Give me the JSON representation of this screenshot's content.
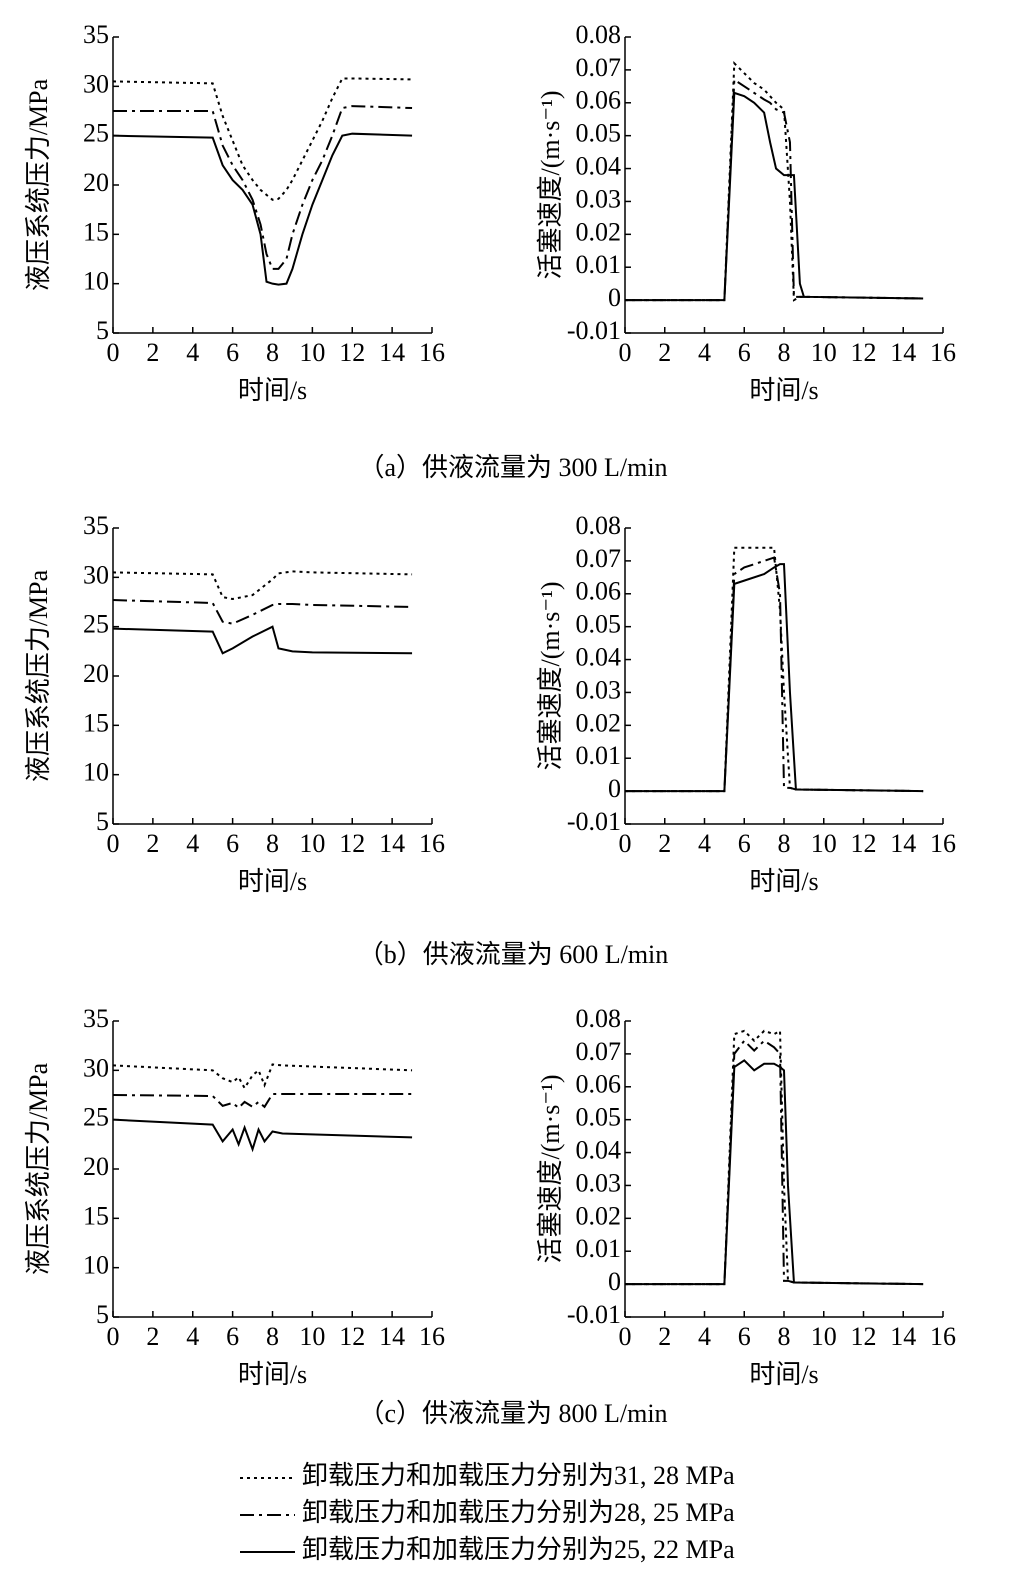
{
  "chart_data": [
    {
      "type": "line",
      "ylabel": "液压系统压力/MPa",
      "xlabel": "时间/s",
      "xlim": [
        0,
        16
      ],
      "xticks": [
        0,
        2,
        4,
        6,
        8,
        10,
        12,
        14,
        16
      ],
      "ylim": [
        5,
        35
      ],
      "yticks": [
        5,
        10,
        15,
        20,
        25,
        30,
        35
      ],
      "x": [
        0,
        5,
        5.5,
        6,
        6.5,
        7,
        7.4,
        7.7,
        8,
        8.3,
        8.7,
        9,
        9.5,
        10,
        10.5,
        11,
        11.5,
        12,
        15
      ],
      "series": [
        {
          "dash": "dotted",
          "color": "#000000",
          "values": [
            30.5,
            30.3,
            27,
            24.5,
            22,
            20.5,
            19.5,
            19,
            18.5,
            18.6,
            19.5,
            20.5,
            22.5,
            24.5,
            26.5,
            28.8,
            30.8,
            30.8,
            30.7
          ]
        },
        {
          "dash": "dashdot",
          "color": "#000000",
          "values": [
            27.5,
            27.5,
            24,
            22,
            20.5,
            18.5,
            16,
            13,
            11.5,
            11.5,
            12.5,
            15,
            18,
            20.5,
            22.5,
            25,
            27.8,
            28,
            27.8
          ]
        },
        {
          "dash": "solid",
          "color": "#000000",
          "values": [
            25,
            24.8,
            22,
            20.5,
            19.5,
            18,
            15,
            10.2,
            10,
            9.9,
            10,
            11.5,
            15,
            18,
            20.5,
            23,
            25,
            25.2,
            25
          ]
        }
      ]
    },
    {
      "type": "line",
      "ylabel": "活塞速度/(m·s⁻¹)",
      "xlabel": "时间/s",
      "xlim": [
        0,
        16
      ],
      "xticks": [
        0,
        2,
        4,
        6,
        8,
        10,
        12,
        14,
        16
      ],
      "ylim": [
        -0.01,
        0.08
      ],
      "yticks": [
        -0.01,
        0,
        0.01,
        0.02,
        0.03,
        0.04,
        0.05,
        0.06,
        0.07,
        0.08
      ],
      "x": [
        0,
        5,
        5.5,
        6,
        6.5,
        7,
        7.3,
        7.6,
        8,
        8.3,
        8.5,
        8.8,
        9,
        15
      ],
      "series": [
        {
          "dash": "dotted",
          "color": "#000000",
          "values": [
            0,
            0,
            0.072,
            0.069,
            0.066,
            0.064,
            0.062,
            0.06,
            0.058,
            0.03,
            0,
            0.001,
            0.001,
            0.0005
          ]
        },
        {
          "dash": "dashdot",
          "color": "#000000",
          "values": [
            0,
            0,
            0.067,
            0.065,
            0.063,
            0.061,
            0.06,
            0.058,
            0.057,
            0.048,
            0.001,
            0.001,
            0.001,
            0.0005
          ]
        },
        {
          "dash": "solid",
          "color": "#000000",
          "values": [
            0,
            0,
            0.063,
            0.062,
            0.06,
            0.057,
            0.048,
            0.04,
            0.038,
            0.038,
            0.038,
            0.005,
            0.001,
            0.0005
          ]
        }
      ]
    },
    {
      "type": "line",
      "ylabel": "液压系统压力/MPa",
      "xlabel": "时间/s",
      "xlim": [
        0,
        16
      ],
      "xticks": [
        0,
        2,
        4,
        6,
        8,
        10,
        12,
        14,
        16
      ],
      "ylim": [
        5,
        35
      ],
      "yticks": [
        5,
        10,
        15,
        20,
        25,
        30,
        35
      ],
      "x": [
        0,
        5,
        5.5,
        6,
        7,
        8,
        8.3,
        9,
        10,
        15
      ],
      "series": [
        {
          "dash": "dotted",
          "color": "#000000",
          "values": [
            30.5,
            30.3,
            28,
            27.8,
            28.2,
            29.8,
            30.4,
            30.6,
            30.5,
            30.3
          ]
        },
        {
          "dash": "dashdot",
          "color": "#000000",
          "values": [
            27.7,
            27.4,
            25.5,
            25.3,
            26.2,
            27.2,
            27.3,
            27.3,
            27.2,
            27
          ]
        },
        {
          "dash": "solid",
          "color": "#000000",
          "values": [
            24.8,
            24.5,
            22.3,
            22.8,
            24,
            25,
            22.8,
            22.5,
            22.4,
            22.3
          ]
        }
      ]
    },
    {
      "type": "line",
      "ylabel": "活塞速度/(m·s⁻¹)",
      "xlabel": "时间/s",
      "xlim": [
        0,
        16
      ],
      "xticks": [
        0,
        2,
        4,
        6,
        8,
        10,
        12,
        14,
        16
      ],
      "ylim": [
        -0.01,
        0.08
      ],
      "yticks": [
        -0.01,
        0,
        0.01,
        0.02,
        0.03,
        0.04,
        0.05,
        0.06,
        0.07,
        0.08
      ],
      "x": [
        0,
        5,
        5.5,
        6,
        7,
        7.5,
        7.8,
        8,
        8.3,
        8.6,
        15
      ],
      "series": [
        {
          "dash": "dotted",
          "color": "#000000",
          "values": [
            0,
            0,
            0.074,
            0.074,
            0.074,
            0.074,
            0.055,
            0.03,
            0.001,
            0.0005,
            0
          ]
        },
        {
          "dash": "dashdot",
          "color": "#000000",
          "values": [
            0,
            0,
            0.066,
            0.068,
            0.07,
            0.071,
            0.06,
            0.001,
            0.001,
            0.0005,
            0
          ]
        },
        {
          "dash": "solid",
          "color": "#000000",
          "values": [
            0,
            0,
            0.063,
            0.064,
            0.066,
            0.068,
            0.069,
            0.069,
            0.03,
            0.0005,
            0
          ]
        }
      ]
    },
    {
      "type": "line",
      "ylabel": "液压系统压力/MPa",
      "xlabel": "时间/s",
      "xlim": [
        0,
        16
      ],
      "xticks": [
        0,
        2,
        4,
        6,
        8,
        10,
        12,
        14,
        16
      ],
      "ylim": [
        5,
        35
      ],
      "yticks": [
        5,
        10,
        15,
        20,
        25,
        30,
        35
      ],
      "x": [
        0,
        5,
        5.5,
        6,
        6.3,
        6.6,
        7,
        7.3,
        7.6,
        8,
        8.5,
        15
      ],
      "series": [
        {
          "dash": "dotted",
          "color": "#000000",
          "values": [
            30.5,
            30,
            29.2,
            28.8,
            29.3,
            28.2,
            29.5,
            30,
            28.5,
            30.6,
            30.5,
            30
          ]
        },
        {
          "dash": "dashdot",
          "color": "#000000",
          "values": [
            27.5,
            27.4,
            26.4,
            26.7,
            26.2,
            26.8,
            26.3,
            26.8,
            26.3,
            27.6,
            27.6,
            27.6
          ]
        },
        {
          "dash": "solid",
          "color": "#000000",
          "values": [
            25,
            24.5,
            22.8,
            24,
            22.5,
            24.2,
            22,
            24,
            22.8,
            23.8,
            23.6,
            23.2
          ]
        }
      ]
    },
    {
      "type": "line",
      "ylabel": "活塞速度/(m·s⁻¹)",
      "xlabel": "时间/s",
      "xlim": [
        0,
        16
      ],
      "xticks": [
        0,
        2,
        4,
        6,
        8,
        10,
        12,
        14,
        16
      ],
      "ylim": [
        -0.01,
        0.08
      ],
      "yticks": [
        -0.01,
        0,
        0.01,
        0.02,
        0.03,
        0.04,
        0.05,
        0.06,
        0.07,
        0.08
      ],
      "x": [
        0,
        5,
        5.5,
        6,
        6.5,
        7,
        7.5,
        7.8,
        8,
        8.2,
        8.5,
        15
      ],
      "series": [
        {
          "dash": "dotted",
          "color": "#000000",
          "values": [
            0,
            0,
            0.076,
            0.077,
            0.074,
            0.077,
            0.076,
            0.077,
            0.03,
            0.001,
            0.0005,
            0
          ]
        },
        {
          "dash": "dashdot",
          "color": "#000000",
          "values": [
            0,
            0,
            0.07,
            0.074,
            0.071,
            0.074,
            0.072,
            0.07,
            0.001,
            0.001,
            0.0005,
            0
          ]
        },
        {
          "dash": "solid",
          "color": "#000000",
          "values": [
            0,
            0,
            0.066,
            0.068,
            0.065,
            0.067,
            0.067,
            0.066,
            0.065,
            0.03,
            0.0005,
            0
          ]
        }
      ]
    }
  ],
  "captions": [
    "（a）供液流量为 300 L/min",
    "（b）供液流量为 600 L/min",
    "（c）供液流量为 800 L/min"
  ],
  "legend": [
    {
      "name": "卸载压力和加载压力分别为31, 28 MPa",
      "dash": "dotted"
    },
    {
      "name": "卸载压力和加载压力分别为28, 25 MPa",
      "dash": "dashdot"
    },
    {
      "name": "卸载压力和加载压力分别为25, 22 MPa",
      "dash": "solid"
    }
  ]
}
